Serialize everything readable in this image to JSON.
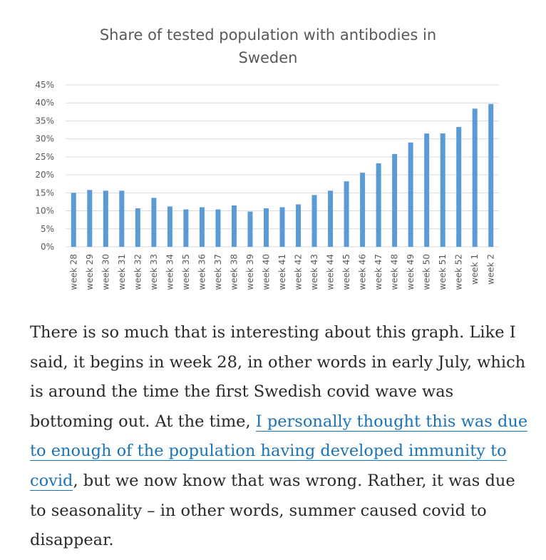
{
  "chart_data": {
    "type": "bar",
    "title": "Share of tested population with antibodies in Sweden",
    "title_lines": [
      "Share of tested population with antibodies in",
      "Sweden"
    ],
    "categories": [
      "week 28",
      "week 29",
      "week 30",
      "week 31",
      "week 32",
      "week 33",
      "week 34",
      "week 35",
      "week 36",
      "week 37",
      "week 38",
      "week 39",
      "week 40",
      "week 41",
      "week 42",
      "week 43",
      "week 44",
      "week 45",
      "week 46",
      "week 47",
      "week 48",
      "week 49",
      "week 50",
      "week 51",
      "week 52",
      "week 1",
      "week 2"
    ],
    "values": [
      15.0,
      15.8,
      15.6,
      15.6,
      10.7,
      13.6,
      11.2,
      10.4,
      11.0,
      10.4,
      11.5,
      9.8,
      10.7,
      11.0,
      11.8,
      14.4,
      15.6,
      18.2,
      20.6,
      23.2,
      25.8,
      29.0,
      31.5,
      31.5,
      33.3,
      38.4,
      39.7
    ],
    "ylim": [
      0,
      45
    ],
    "yticks": [
      "0%",
      "5%",
      "10%",
      "15%",
      "20%",
      "25%",
      "30%",
      "35%",
      "40%",
      "45%"
    ],
    "grid": true,
    "bar_color": "#5b9bd5",
    "xlabel": "",
    "ylabel": ""
  },
  "article": {
    "text_before_link": "There is so much that is interesting about this graph. Like I said, it begins in week 28, in other words in early July, which is around the time the first Swedish covid wave was bottoming out. At the time, ",
    "link_text": "I personally thought this was due to enough of the population having developed immunity to covid",
    "text_after_link": ", but we now know that was wrong. Rather, it was due to seasonality – in other words, summer caused covid to disappear."
  }
}
